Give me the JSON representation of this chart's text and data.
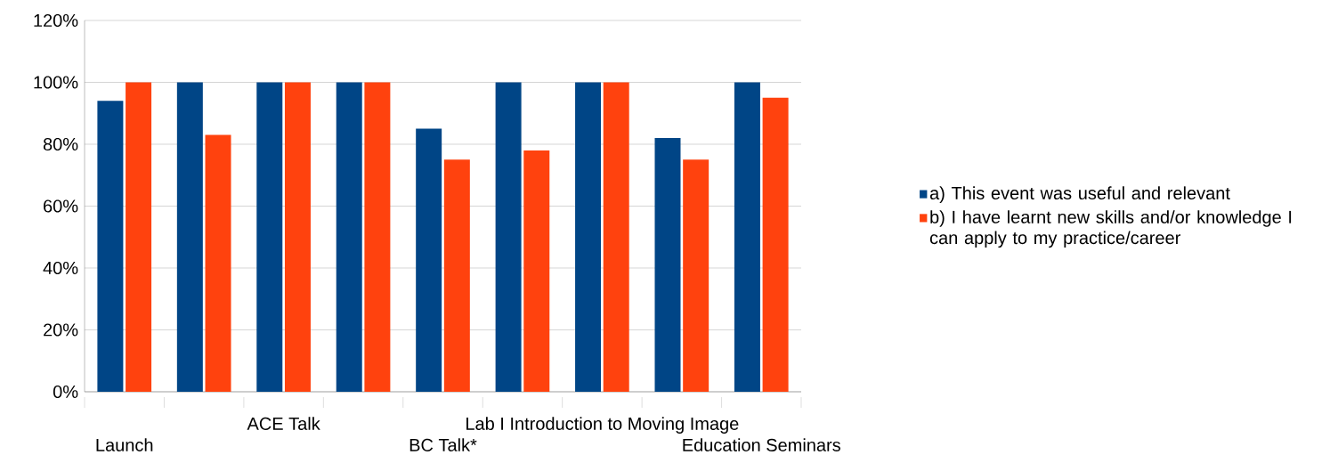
{
  "chart_data": {
    "type": "bar",
    "categories": [
      "Launch",
      null,
      "ACE Talk",
      null,
      "BC Talk*",
      null,
      "Lab I Introduction to Moving Image",
      null,
      "Education Seminars"
    ],
    "series": [
      {
        "name": "a) This event was useful and relevant",
        "color": "#004586",
        "values": [
          0.94,
          1.0,
          1.0,
          1.0,
          0.85,
          1.0,
          1.0,
          0.82,
          1.0
        ]
      },
      {
        "name": "b) I have learnt new skills and/or knowledge I can apply to my practice/career",
        "color": "#ff420e",
        "values": [
          1.0,
          0.83,
          1.0,
          1.0,
          0.75,
          0.78,
          1.0,
          0.75,
          0.95
        ]
      }
    ],
    "ylim": [
      0,
      1.2
    ],
    "yticks": [
      {
        "value": 0,
        "label": "0%"
      },
      {
        "value": 0.2,
        "label": "20%"
      },
      {
        "value": 0.4,
        "label": "40%"
      },
      {
        "value": 0.6,
        "label": "60%"
      },
      {
        "value": 0.8,
        "label": "80%"
      },
      {
        "value": 1.0,
        "label": "100%"
      },
      {
        "value": 1.2,
        "label": "120%"
      }
    ],
    "grid": "y",
    "legend": "right"
  }
}
